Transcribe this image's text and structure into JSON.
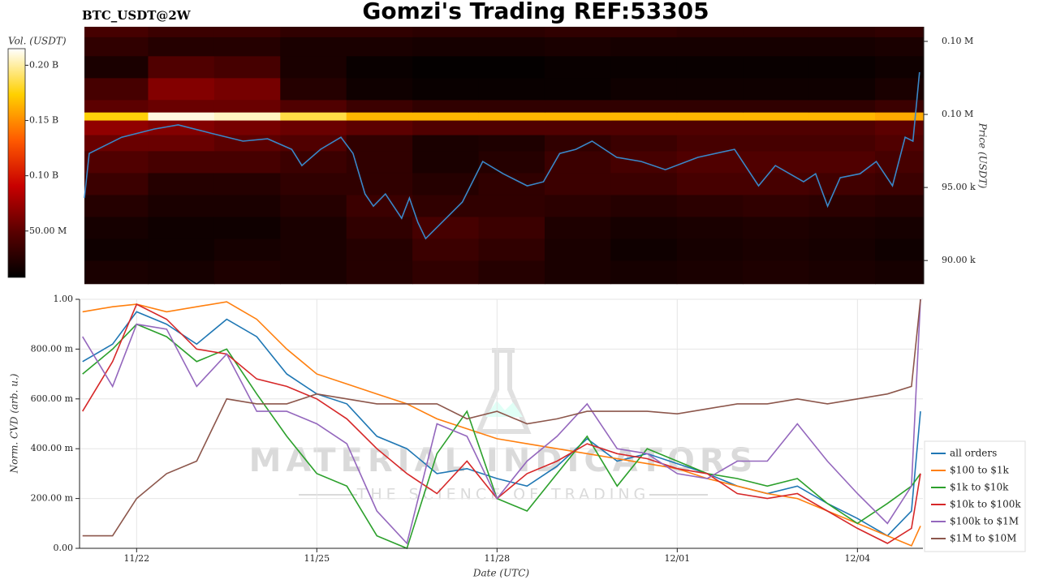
{
  "title": "Gomzi's Trading REF:53305",
  "symbol": "BTC_USDT@2W",
  "watermark": [
    "MATERIAL INDICATORS",
    "THE SCIENCE OF TRADING"
  ],
  "chart_data": [
    {
      "type": "heatmap",
      "zlabel": "Vol. (USDT)",
      "ylabel": "Price (USDT)",
      "colorscale": [
        "#000000",
        "#5a0000",
        "#c80000",
        "#ff5a00",
        "#ffd000",
        "#ffffff"
      ],
      "zlim": [
        8000000.0,
        215000000.0
      ],
      "zticks": [
        {
          "value": 50000000.0,
          "label": "50.00 M"
        },
        {
          "value": 100000000.0,
          "label": "0.10 B"
        },
        {
          "value": 150000000.0,
          "label": "0.15 B"
        },
        {
          "value": 200000000.0,
          "label": "0.20 B"
        }
      ],
      "xlim": [
        21.14,
        35.11
      ],
      "ylim": [
        88400,
        106000
      ],
      "yticks": [
        {
          "value": 90000,
          "label": "90.00 k"
        },
        {
          "value": 95000,
          "label": "95.00 k"
        },
        {
          "value": 100000,
          "label": "0.10 M"
        },
        {
          "value": 105000,
          "label": "0.10 M"
        }
      ],
      "x_edges": [
        21.14,
        22.2,
        23.3,
        24.4,
        25.5,
        26.6,
        27.7,
        28.8,
        29.9,
        31.0,
        32.1,
        33.2,
        34.3,
        35.11
      ],
      "y_edges": [
        88400,
        90000,
        91500,
        93000,
        94500,
        96000,
        97500,
        98600,
        99600,
        100150,
        101000,
        102500,
        104000,
        105300,
        106000
      ],
      "z": [
        [
          20000000.0,
          18000000.0,
          22000000.0,
          20000000.0,
          25000000.0,
          30000000.0,
          25000000.0,
          20000000.0,
          18000000.0,
          20000000.0,
          22000000.0,
          20000000.0,
          18000000.0
        ],
        [
          15000000.0,
          15000000.0,
          18000000.0,
          20000000.0,
          25000000.0,
          35000000.0,
          30000000.0,
          20000000.0,
          15000000.0,
          18000000.0,
          20000000.0,
          18000000.0,
          15000000.0
        ],
        [
          18000000.0,
          15000000.0,
          15000000.0,
          20000000.0,
          30000000.0,
          40000000.0,
          35000000.0,
          22000000.0,
          18000000.0,
          20000000.0,
          22000000.0,
          20000000.0,
          18000000.0
        ],
        [
          25000000.0,
          20000000.0,
          20000000.0,
          25000000.0,
          35000000.0,
          30000000.0,
          30000000.0,
          28000000.0,
          25000000.0,
          28000000.0,
          30000000.0,
          28000000.0,
          25000000.0
        ],
        [
          35000000.0,
          25000000.0,
          25000000.0,
          30000000.0,
          30000000.0,
          25000000.0,
          30000000.0,
          35000000.0,
          35000000.0,
          40000000.0,
          40000000.0,
          38000000.0,
          35000000.0
        ],
        [
          45000000.0,
          40000000.0,
          40000000.0,
          35000000.0,
          30000000.0,
          20000000.0,
          25000000.0,
          35000000.0,
          40000000.0,
          45000000.0,
          45000000.0,
          45000000.0,
          40000000.0
        ],
        [
          55000000.0,
          55000000.0,
          50000000.0,
          45000000.0,
          30000000.0,
          20000000.0,
          22000000.0,
          30000000.0,
          35000000.0,
          40000000.0,
          40000000.0,
          40000000.0,
          45000000.0
        ],
        [
          70000000.0,
          65000000.0,
          60000000.0,
          55000000.0,
          50000000.0,
          45000000.0,
          45000000.0,
          45000000.0,
          45000000.0,
          45000000.0,
          45000000.0,
          45000000.0,
          50000000.0
        ],
        [
          175000000.0,
          210000000.0,
          205000000.0,
          185000000.0,
          165000000.0,
          165000000.0,
          165000000.0,
          165000000.0,
          165000000.0,
          165000000.0,
          165000000.0,
          165000000.0,
          160000000.0
        ],
        [
          50000000.0,
          55000000.0,
          55000000.0,
          45000000.0,
          35000000.0,
          30000000.0,
          30000000.0,
          30000000.0,
          30000000.0,
          30000000.0,
          30000000.0,
          30000000.0,
          35000000.0
        ],
        [
          40000000.0,
          65000000.0,
          60000000.0,
          25000000.0,
          15000000.0,
          12000000.0,
          12000000.0,
          12000000.0,
          15000000.0,
          15000000.0,
          15000000.0,
          15000000.0,
          20000000.0
        ],
        [
          20000000.0,
          45000000.0,
          40000000.0,
          20000000.0,
          12000000.0,
          10000000.0,
          10000000.0,
          12000000.0,
          12000000.0,
          12000000.0,
          12000000.0,
          12000000.0,
          15000000.0
        ],
        [
          30000000.0,
          25000000.0,
          25000000.0,
          20000000.0,
          20000000.0,
          18000000.0,
          18000000.0,
          20000000.0,
          18000000.0,
          18000000.0,
          18000000.0,
          18000000.0,
          20000000.0
        ],
        [
          40000000.0,
          35000000.0,
          35000000.0,
          30000000.0,
          30000000.0,
          28000000.0,
          28000000.0,
          30000000.0,
          30000000.0,
          28000000.0,
          28000000.0,
          28000000.0,
          30000000.0
        ]
      ],
      "line": {
        "color": "#3a87c8",
        "x": [
          21.14,
          21.22,
          21.76,
          22.3,
          22.7,
          23.24,
          23.78,
          24.19,
          24.59,
          24.76,
          25.07,
          25.41,
          25.61,
          25.81,
          25.95,
          26.15,
          26.42,
          26.55,
          26.69,
          26.82,
          27.16,
          27.43,
          27.77,
          28.11,
          28.51,
          28.78,
          29.05,
          29.32,
          29.59,
          30.0,
          30.41,
          30.81,
          31.35,
          31.96,
          32.36,
          32.64,
          33.11,
          33.31,
          33.51,
          33.72,
          34.05,
          34.32,
          34.59,
          34.8,
          34.93,
          35.04
        ],
        "values": [
          94280,
          97330,
          98440,
          99000,
          99280,
          98720,
          98170,
          98330,
          97610,
          96500,
          97610,
          98440,
          97330,
          94560,
          93720,
          94560,
          92890,
          94280,
          92610,
          91500,
          92890,
          94000,
          96780,
          95940,
          95110,
          95390,
          97330,
          97610,
          98170,
          97060,
          96780,
          96220,
          97060,
          97610,
          95110,
          96500,
          95390,
          95940,
          93720,
          95670,
          95940,
          96780,
          95110,
          98440,
          98170,
          102890
        ]
      }
    },
    {
      "type": "line",
      "xlabel": "Date (UTC)",
      "ylabel": "Norm. CVD (arb. u.)",
      "grid": true,
      "legend": "lower right",
      "xlim": [
        21.05,
        35.09
      ],
      "xticks": [
        {
          "value": 22,
          "label": "11/22"
        },
        {
          "value": 25,
          "label": "11/25"
        },
        {
          "value": 28,
          "label": "11/28"
        },
        {
          "value": 31,
          "label": "12/01"
        },
        {
          "value": 34,
          "label": "12/04"
        }
      ],
      "ylim": [
        0,
        1
      ],
      "yticks": [
        {
          "value": 0,
          "label": "0.00"
        },
        {
          "value": 0.2,
          "label": "200.00 m"
        },
        {
          "value": 0.4,
          "label": "400.00 m"
        },
        {
          "value": 0.6,
          "label": "600.00 m"
        },
        {
          "value": 0.8,
          "label": "800.00 m"
        },
        {
          "value": 1,
          "label": "1.00"
        }
      ],
      "x": [
        21.1,
        21.6,
        22.0,
        22.5,
        23.0,
        23.5,
        24.0,
        24.5,
        25.0,
        25.5,
        26.0,
        26.5,
        27.0,
        27.5,
        28.0,
        28.5,
        29.0,
        29.5,
        30.0,
        30.5,
        31.0,
        31.5,
        32.0,
        32.5,
        33.0,
        33.5,
        34.0,
        34.5,
        34.9,
        35.05
      ],
      "series": [
        {
          "name": "all orders",
          "color": "#1f77b4",
          "values": [
            0.75,
            0.82,
            0.95,
            0.9,
            0.82,
            0.92,
            0.85,
            0.7,
            0.62,
            0.58,
            0.45,
            0.4,
            0.3,
            0.32,
            0.28,
            0.25,
            0.33,
            0.44,
            0.35,
            0.38,
            0.34,
            0.3,
            0.25,
            0.22,
            0.25,
            0.18,
            0.12,
            0.05,
            0.15,
            0.55
          ]
        },
        {
          "name": "$100 to $1k",
          "color": "#ff7f0e",
          "values": [
            0.95,
            0.97,
            0.98,
            0.95,
            0.97,
            0.99,
            0.92,
            0.8,
            0.7,
            0.66,
            0.62,
            0.58,
            0.52,
            0.48,
            0.44,
            0.42,
            0.4,
            0.38,
            0.36,
            0.34,
            0.32,
            0.28,
            0.25,
            0.22,
            0.2,
            0.15,
            0.1,
            0.05,
            0.01,
            0.09
          ]
        },
        {
          "name": "$1k to $10k",
          "color": "#2ca02c",
          "values": [
            0.7,
            0.8,
            0.9,
            0.85,
            0.75,
            0.8,
            0.62,
            0.45,
            0.3,
            0.25,
            0.05,
            0.0,
            0.38,
            0.55,
            0.2,
            0.15,
            0.3,
            0.45,
            0.25,
            0.4,
            0.35,
            0.3,
            0.28,
            0.25,
            0.28,
            0.18,
            0.1,
            0.18,
            0.25,
            0.3
          ]
        },
        {
          "name": "$10k to $100k",
          "color": "#d62728",
          "values": [
            0.55,
            0.75,
            0.98,
            0.92,
            0.8,
            0.78,
            0.68,
            0.65,
            0.6,
            0.52,
            0.4,
            0.3,
            0.22,
            0.35,
            0.2,
            0.3,
            0.35,
            0.42,
            0.38,
            0.36,
            0.32,
            0.3,
            0.22,
            0.2,
            0.22,
            0.15,
            0.08,
            0.02,
            0.08,
            0.3
          ]
        },
        {
          "name": "$100k to $1M",
          "color": "#9467bd",
          "values": [
            0.85,
            0.65,
            0.9,
            0.88,
            0.65,
            0.78,
            0.55,
            0.55,
            0.5,
            0.42,
            0.15,
            0.02,
            0.5,
            0.45,
            0.2,
            0.35,
            0.45,
            0.58,
            0.4,
            0.38,
            0.3,
            0.28,
            0.35,
            0.35,
            0.5,
            0.35,
            0.22,
            0.1,
            0.25,
            1.0
          ]
        },
        {
          "name": "$1M to $10M",
          "color": "#8c564b",
          "values": [
            0.05,
            0.05,
            0.2,
            0.3,
            0.35,
            0.6,
            0.58,
            0.58,
            0.62,
            0.6,
            0.58,
            0.58,
            0.58,
            0.52,
            0.55,
            0.5,
            0.52,
            0.55,
            0.55,
            0.55,
            0.54,
            0.56,
            0.58,
            0.58,
            0.6,
            0.58,
            0.6,
            0.62,
            0.65,
            1.0
          ]
        }
      ]
    }
  ]
}
